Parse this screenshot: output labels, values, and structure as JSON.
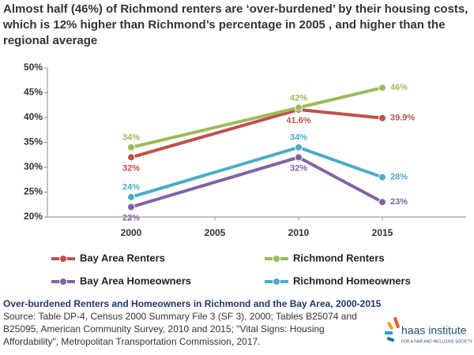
{
  "chart_data": {
    "type": "line",
    "title": [
      "Almost half (46%) of Richmond renters are ‘over-burdened’ by their housing costs,",
      "which is 12% higher than Richmond’s percentage in 2005 , and higher than the",
      "regional average"
    ],
    "x": [
      2000,
      2010,
      2015
    ],
    "xlim": [
      1995,
      2020
    ],
    "xticks": [
      2000,
      2005,
      2010,
      2015
    ],
    "ylim": [
      20,
      50
    ],
    "yticks": [
      {
        "value": 20,
        "label": "20%"
      },
      {
        "value": 25,
        "label": "25%"
      },
      {
        "value": 30,
        "label": "30%"
      },
      {
        "value": 35,
        "label": "35%"
      },
      {
        "value": 40,
        "label": "40%"
      },
      {
        "value": 45,
        "label": "45%"
      },
      {
        "value": 50,
        "label": "50%"
      }
    ],
    "grid": false,
    "legend": "bottom",
    "series": [
      {
        "name": "Bay Area Renters",
        "color": "#c0504d",
        "values": [
          32,
          41.6,
          39.9
        ],
        "value_labels": [
          "32%",
          "41.6%",
          "39.9%"
        ]
      },
      {
        "name": "Richmond Renters",
        "color": "#9bbb59",
        "values": [
          34,
          42,
          46
        ],
        "value_labels": [
          "34%",
          "42%",
          "46%"
        ]
      },
      {
        "name": "Bay Area Homeowners",
        "color": "#8064a2",
        "values": [
          22,
          32,
          23
        ],
        "value_labels": [
          "22%",
          "32%",
          "23%"
        ]
      },
      {
        "name": "Richmond Homeowners",
        "color": "#4bacc6",
        "values": [
          24,
          34,
          28
        ],
        "value_labels": [
          "24%",
          "34%",
          "28%"
        ]
      }
    ],
    "caption": "Over-burdened Renters and Homeowners in Richmond and the Bay Area, 2000-2015",
    "source": [
      "Source: Table DP-4, Census 2000 Summary File 3 (SF 3), 2000; Tables B25074 and",
      "B25095, American Community Survey, 2010 and 2015; \"Vital Signs: Housing",
      "Affordability\", Metropolitan Transportation Commission, 2017."
    ],
    "logo": {
      "name": "haas institute",
      "tagline": "FOR A FAIR AND INCLUSIVE SOCIETY"
    }
  }
}
